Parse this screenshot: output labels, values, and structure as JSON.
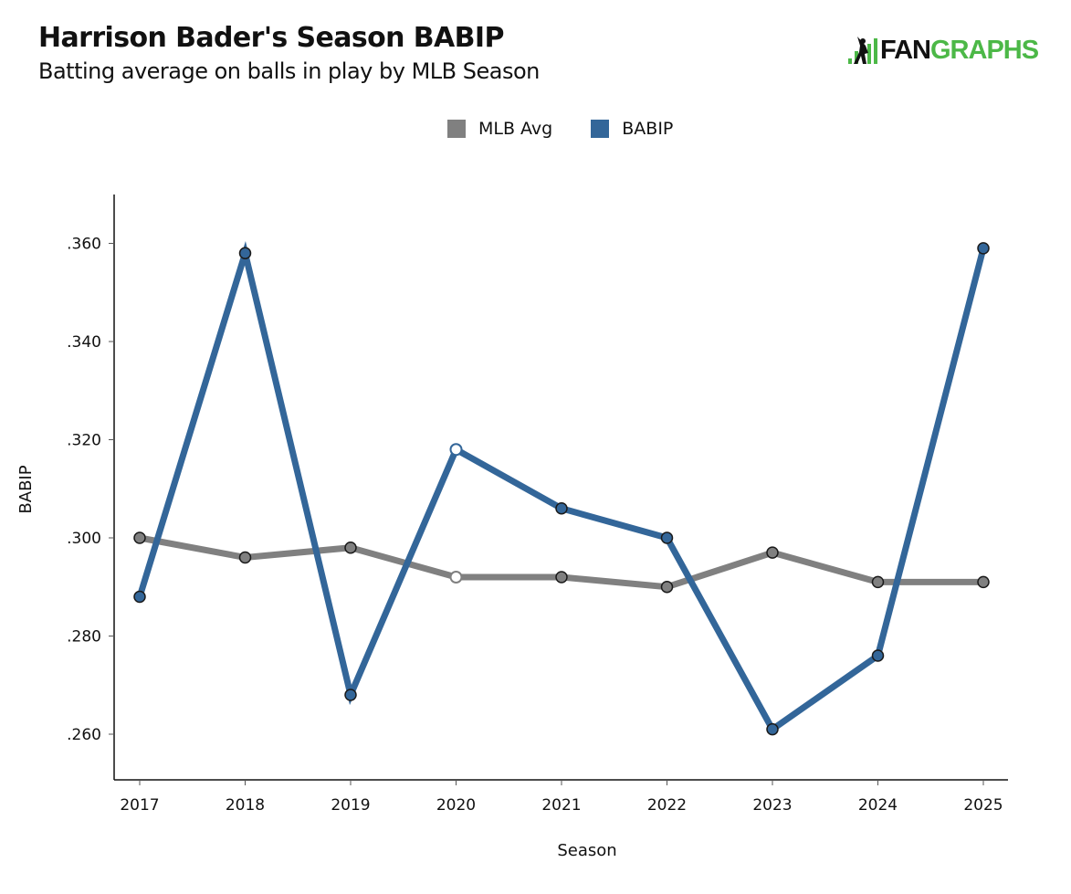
{
  "header": {
    "title": "Harrison Bader's Season BABIP",
    "subtitle": "Batting average on balls in play by MLB Season"
  },
  "logo": {
    "text_dark": "FAN",
    "text_green": "GRAPHS",
    "icon": "batter-bars-icon",
    "brand_green": "#4cb847"
  },
  "chart_data": {
    "type": "line",
    "title": "Harrison Bader's Season BABIP",
    "subtitle": "Batting average on balls in play by MLB Season",
    "xlabel": "Season",
    "ylabel": "BABIP",
    "x": [
      2017,
      2018,
      2019,
      2020,
      2021,
      2022,
      2023,
      2024,
      2025
    ],
    "x_tick_labels": [
      "2017",
      "2018",
      "2019",
      "2020",
      "2021",
      "2022",
      "2023",
      "2024",
      "2025"
    ],
    "ylim": [
      0.25,
      0.37
    ],
    "y_ticks": [
      0.26,
      0.28,
      0.3,
      0.32,
      0.34,
      0.36
    ],
    "y_tick_labels": [
      ".260",
      ".280",
      ".300",
      ".320",
      ".340",
      ".360"
    ],
    "grid": false,
    "legend_position": "top-center",
    "hollow_marker_x": [
      2020
    ],
    "series": [
      {
        "name": "MLB Avg",
        "color": "#808080",
        "values": [
          0.3,
          0.296,
          0.298,
          0.292,
          0.292,
          0.29,
          0.297,
          0.291,
          0.291
        ]
      },
      {
        "name": "BABIP",
        "color": "#336699",
        "values": [
          0.288,
          0.358,
          0.268,
          0.318,
          0.306,
          0.3,
          0.261,
          0.276,
          0.359
        ]
      }
    ]
  }
}
